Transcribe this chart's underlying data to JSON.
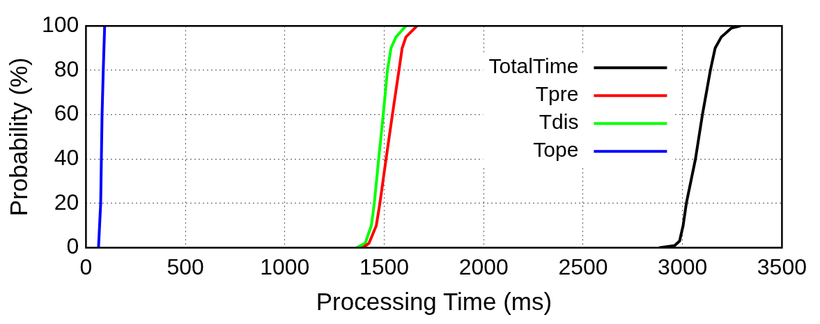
{
  "chart_data": {
    "type": "line",
    "xlabel": "Processing Time (ms)",
    "ylabel": "Probability (%)",
    "xlim": [
      0,
      3500
    ],
    "xticks": [
      0,
      500,
      1000,
      1500,
      2000,
      2500,
      3000,
      3500
    ],
    "ylim": [
      0,
      100
    ],
    "yticks": [
      0,
      20,
      40,
      60,
      80,
      100
    ],
    "grid": true,
    "legend": "top right",
    "marker": "none",
    "line_style": "solid",
    "series": [
      {
        "name": "TotalTime",
        "color": "#000000",
        "x": [
          2885,
          2960,
          2985,
          3003,
          3019,
          3065,
          3100,
          3140,
          3164,
          3195,
          3245,
          3289
        ],
        "values": [
          0,
          1,
          3,
          10,
          20,
          40,
          60,
          80,
          90,
          95,
          99,
          100
        ]
      },
      {
        "name": "Tpre",
        "color": "#ff0000",
        "x": [
          1392,
          1423,
          1460,
          1478,
          1509,
          1541,
          1574,
          1590,
          1609,
          1665
        ],
        "values": [
          0,
          2,
          10,
          20,
          40,
          60,
          80,
          90,
          95,
          100
        ]
      },
      {
        "name": "Tdis",
        "color": "#00ff00",
        "x": [
          1361,
          1404,
          1435,
          1450,
          1472,
          1495,
          1516,
          1534,
          1559,
          1609
        ],
        "values": [
          0,
          2,
          10,
          20,
          40,
          60,
          80,
          90,
          95,
          100
        ]
      },
      {
        "name": "Tope",
        "color": "#0000ff",
        "x": [
          63,
          74,
          81,
          87,
          94
        ],
        "values": [
          0,
          20,
          60,
          80,
          100
        ]
      }
    ]
  }
}
